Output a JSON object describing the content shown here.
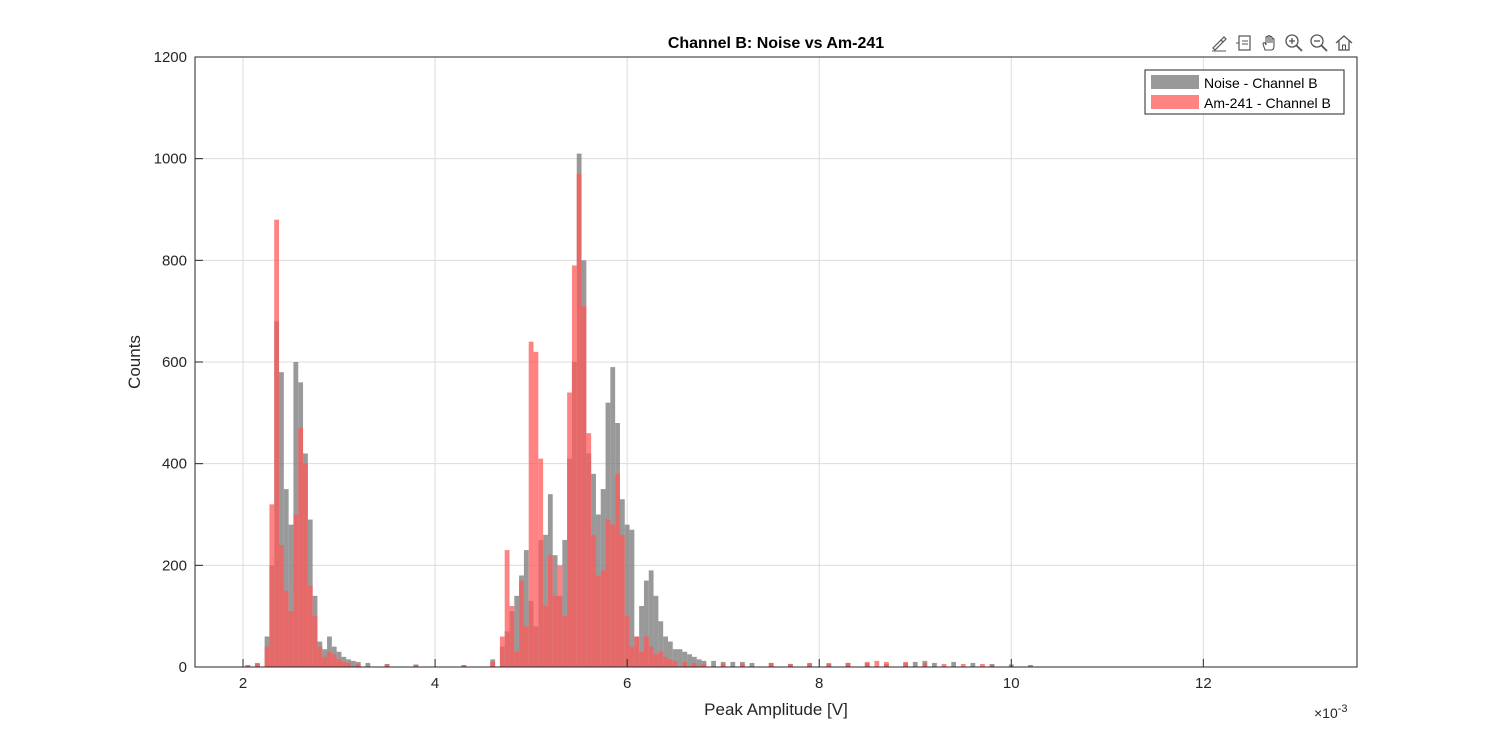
{
  "toolbar": {
    "icons": [
      "brush-icon",
      "datatip-icon",
      "pan-hand-icon",
      "zoom-in-icon",
      "zoom-out-icon",
      "home-icon"
    ]
  },
  "colors": {
    "noise": "#808080",
    "am241": "#ff5a5a",
    "overlap": "#c94a4a",
    "grid": "#dcdcdc",
    "axis": "#262626"
  },
  "chart_data": {
    "type": "bar",
    "title": "Channel B: Noise vs Am-241",
    "xlabel": "Peak Amplitude [V]",
    "ylabel": "Counts",
    "x_exponent_label": "×10",
    "x_exponent_power": "-3",
    "xlim": [
      1.5,
      13.6
    ],
    "ylim": [
      0,
      1200
    ],
    "xticks": [
      2,
      4,
      6,
      8,
      10,
      12
    ],
    "xtick_labels": [
      "2",
      "4",
      "6",
      "8",
      "10",
      "12"
    ],
    "yticks": [
      0,
      200,
      400,
      600,
      800,
      1000,
      1200
    ],
    "ytick_labels": [
      "0",
      "200",
      "400",
      "600",
      "800",
      "1000",
      "1200"
    ],
    "grid": true,
    "legend_position": "top-right",
    "bin_width": 0.05,
    "series": [
      {
        "name": "Noise - Channel B",
        "color": "#808080",
        "alpha": 0.8,
        "x": [
          2.05,
          2.15,
          2.25,
          2.3,
          2.35,
          2.4,
          2.45,
          2.5,
          2.55,
          2.6,
          2.65,
          2.7,
          2.75,
          2.8,
          2.85,
          2.9,
          2.95,
          3.0,
          3.05,
          3.1,
          3.15,
          3.2,
          3.3,
          3.5,
          3.8,
          4.3,
          4.6,
          4.7,
          4.75,
          4.8,
          4.85,
          4.9,
          4.95,
          5.0,
          5.05,
          5.1,
          5.15,
          5.2,
          5.25,
          5.3,
          5.35,
          5.4,
          5.45,
          5.5,
          5.55,
          5.6,
          5.65,
          5.7,
          5.75,
          5.8,
          5.85,
          5.9,
          5.95,
          6.0,
          6.05,
          6.1,
          6.15,
          6.2,
          6.25,
          6.3,
          6.35,
          6.4,
          6.45,
          6.5,
          6.55,
          6.6,
          6.65,
          6.7,
          6.75,
          6.8,
          6.9,
          7.0,
          7.1,
          7.2,
          7.3,
          7.5,
          7.7,
          7.9,
          8.1,
          8.3,
          8.5,
          8.7,
          8.9,
          9.0,
          9.1,
          9.2,
          9.4,
          9.6,
          9.8,
          10.0,
          10.2
        ],
        "values": [
          3,
          8,
          60,
          200,
          680,
          580,
          350,
          280,
          600,
          560,
          420,
          290,
          140,
          50,
          35,
          60,
          40,
          30,
          20,
          15,
          12,
          10,
          8,
          6,
          5,
          4,
          15,
          40,
          70,
          110,
          140,
          180,
          230,
          130,
          80,
          250,
          260,
          340,
          220,
          140,
          250,
          410,
          600,
          1010,
          800,
          420,
          380,
          300,
          350,
          520,
          590,
          480,
          330,
          280,
          270,
          60,
          120,
          170,
          190,
          140,
          90,
          60,
          50,
          35,
          35,
          30,
          25,
          20,
          15,
          12,
          12,
          10,
          10,
          10,
          8,
          8,
          6,
          8,
          6,
          8,
          8,
          6,
          8,
          10,
          12,
          8,
          10,
          8,
          6,
          5,
          4
        ]
      },
      {
        "name": "Am-241 - Channel B",
        "color": "#ff5a5a",
        "alpha": 0.75,
        "x": [
          2.05,
          2.15,
          2.25,
          2.3,
          2.35,
          2.4,
          2.45,
          2.5,
          2.55,
          2.6,
          2.65,
          2.7,
          2.75,
          2.8,
          2.85,
          2.9,
          2.95,
          3.0,
          3.05,
          3.1,
          3.2,
          3.5,
          3.8,
          4.3,
          4.6,
          4.7,
          4.75,
          4.8,
          4.85,
          4.9,
          4.95,
          5.0,
          5.05,
          5.1,
          5.15,
          5.2,
          5.25,
          5.3,
          5.35,
          5.4,
          5.45,
          5.5,
          5.55,
          5.6,
          5.65,
          5.7,
          5.75,
          5.8,
          5.85,
          5.9,
          5.95,
          6.0,
          6.05,
          6.1,
          6.15,
          6.2,
          6.25,
          6.3,
          6.35,
          6.4,
          6.45,
          6.5,
          6.6,
          6.7,
          6.8,
          7.0,
          7.2,
          7.5,
          7.7,
          7.9,
          8.1,
          8.3,
          8.5,
          8.6,
          8.7,
          8.9,
          9.1,
          9.3,
          9.5,
          9.7,
          9.8
        ],
        "values": [
          4,
          6,
          40,
          320,
          880,
          240,
          150,
          110,
          300,
          470,
          400,
          160,
          100,
          40,
          20,
          30,
          25,
          15,
          10,
          8,
          6,
          5,
          4,
          3,
          10,
          60,
          230,
          120,
          30,
          170,
          80,
          640,
          620,
          410,
          120,
          220,
          140,
          200,
          100,
          540,
          790,
          970,
          710,
          460,
          260,
          180,
          190,
          290,
          280,
          380,
          260,
          100,
          40,
          60,
          30,
          60,
          40,
          25,
          30,
          20,
          15,
          12,
          10,
          8,
          6,
          6,
          6,
          8,
          6,
          6,
          8,
          8,
          10,
          12,
          10,
          10,
          8,
          6,
          6,
          6,
          4
        ]
      }
    ]
  }
}
